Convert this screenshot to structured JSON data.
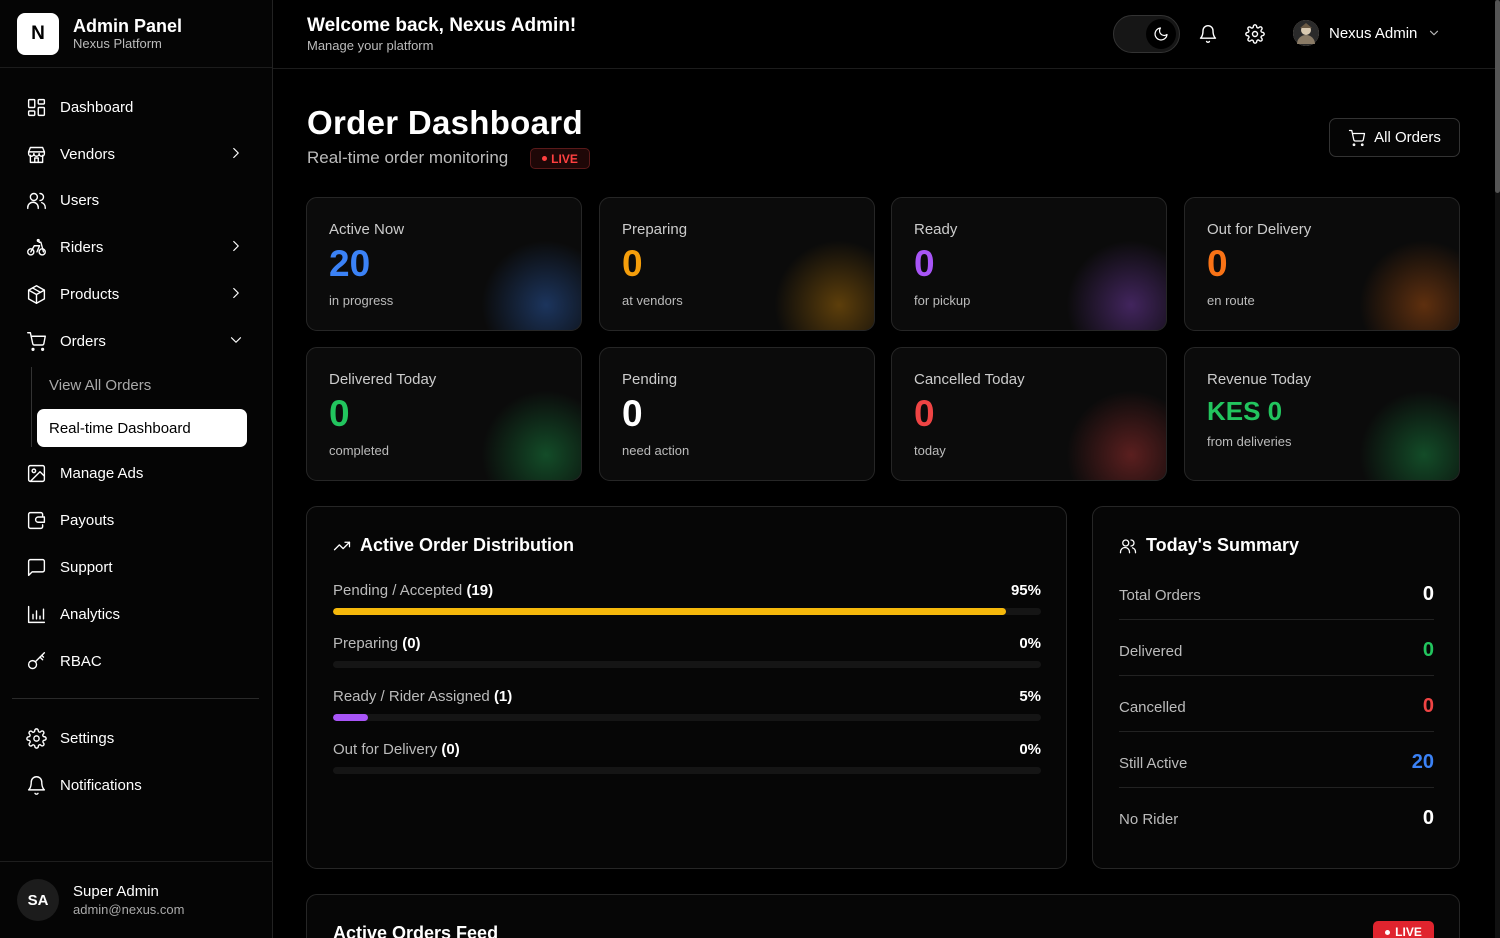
{
  "brand": {
    "logo": "N",
    "title": "Admin Panel",
    "subtitle": "Nexus Platform"
  },
  "nav": {
    "items": [
      {
        "label": "Dashboard",
        "icon": "dashboard-icon"
      },
      {
        "label": "Vendors",
        "icon": "store-icon"
      },
      {
        "label": "Users",
        "icon": "users-icon"
      },
      {
        "label": "Riders",
        "icon": "bike-icon"
      },
      {
        "label": "Products",
        "icon": "box-icon"
      },
      {
        "label": "Orders",
        "icon": "cart-icon"
      },
      {
        "label": "Manage Ads",
        "icon": "image-icon"
      },
      {
        "label": "Payouts",
        "icon": "wallet-icon"
      },
      {
        "label": "Support",
        "icon": "message-icon"
      },
      {
        "label": "Analytics",
        "icon": "bar-chart-icon"
      },
      {
        "label": "RBAC",
        "icon": "key-icon"
      },
      {
        "label": "Settings",
        "icon": "gear-icon"
      },
      {
        "label": "Notifications",
        "icon": "bell-icon"
      }
    ],
    "orders_sub": [
      {
        "label": "View All Orders"
      },
      {
        "label": "Real-time Dashboard",
        "active": true
      }
    ]
  },
  "footer_user": {
    "initials": "SA",
    "name": "Super Admin",
    "email": "admin@nexus.com"
  },
  "topbar": {
    "welcome": "Welcome back, Nexus Admin!",
    "subtitle": "Manage your platform",
    "user_name": "Nexus Admin"
  },
  "page": {
    "title": "Order Dashboard",
    "subtitle": "Real-time order monitoring",
    "live": "LIVE",
    "all_orders": "All Orders"
  },
  "stats": [
    {
      "label": "Active Now",
      "value": "20",
      "sub": "in progress",
      "color": "#3b82f6"
    },
    {
      "label": "Preparing",
      "value": "0",
      "sub": "at vendors",
      "color": "#f59e0b"
    },
    {
      "label": "Ready",
      "value": "0",
      "sub": "for pickup",
      "color": "#a855f7"
    },
    {
      "label": "Out for Delivery",
      "value": "0",
      "sub": "en route",
      "color": "#f97316"
    },
    {
      "label": "Delivered Today",
      "value": "0",
      "sub": "completed",
      "color": "#22c55e"
    },
    {
      "label": "Pending",
      "value": "0",
      "sub": "need action",
      "color": "#ffffff"
    },
    {
      "label": "Cancelled Today",
      "value": "0",
      "sub": "today",
      "color": "#ef4444"
    },
    {
      "label": "Revenue Today",
      "value": "KES 0",
      "sub": "from deliveries",
      "color": "#22c55e"
    }
  ],
  "distribution": {
    "title": "Active Order Distribution",
    "rows": [
      {
        "label": "Pending / Accepted",
        "count": "(19)",
        "pct": "95%",
        "fraction": 0.95,
        "color": "#f5b80b"
      },
      {
        "label": "Preparing",
        "count": "(0)",
        "pct": "0%",
        "fraction": 0,
        "color": "#f59e0b"
      },
      {
        "label": "Ready / Rider Assigned",
        "count": "(1)",
        "pct": "5%",
        "fraction": 0.05,
        "color": "#a855f7"
      },
      {
        "label": "Out for Delivery",
        "count": "(0)",
        "pct": "0%",
        "fraction": 0,
        "color": "#f97316"
      }
    ]
  },
  "summary": {
    "title": "Today's Summary",
    "rows": [
      {
        "label": "Total Orders",
        "value": "0",
        "color": "#ffffff"
      },
      {
        "label": "Delivered",
        "value": "0",
        "color": "#22c55e"
      },
      {
        "label": "Cancelled",
        "value": "0",
        "color": "#ef4444"
      },
      {
        "label": "Still Active",
        "value": "20",
        "color": "#3b82f6"
      },
      {
        "label": "No Rider",
        "value": "0",
        "color": "#ffffff"
      }
    ]
  },
  "feed": {
    "title": "Active Orders Feed",
    "live": "LIVE"
  }
}
